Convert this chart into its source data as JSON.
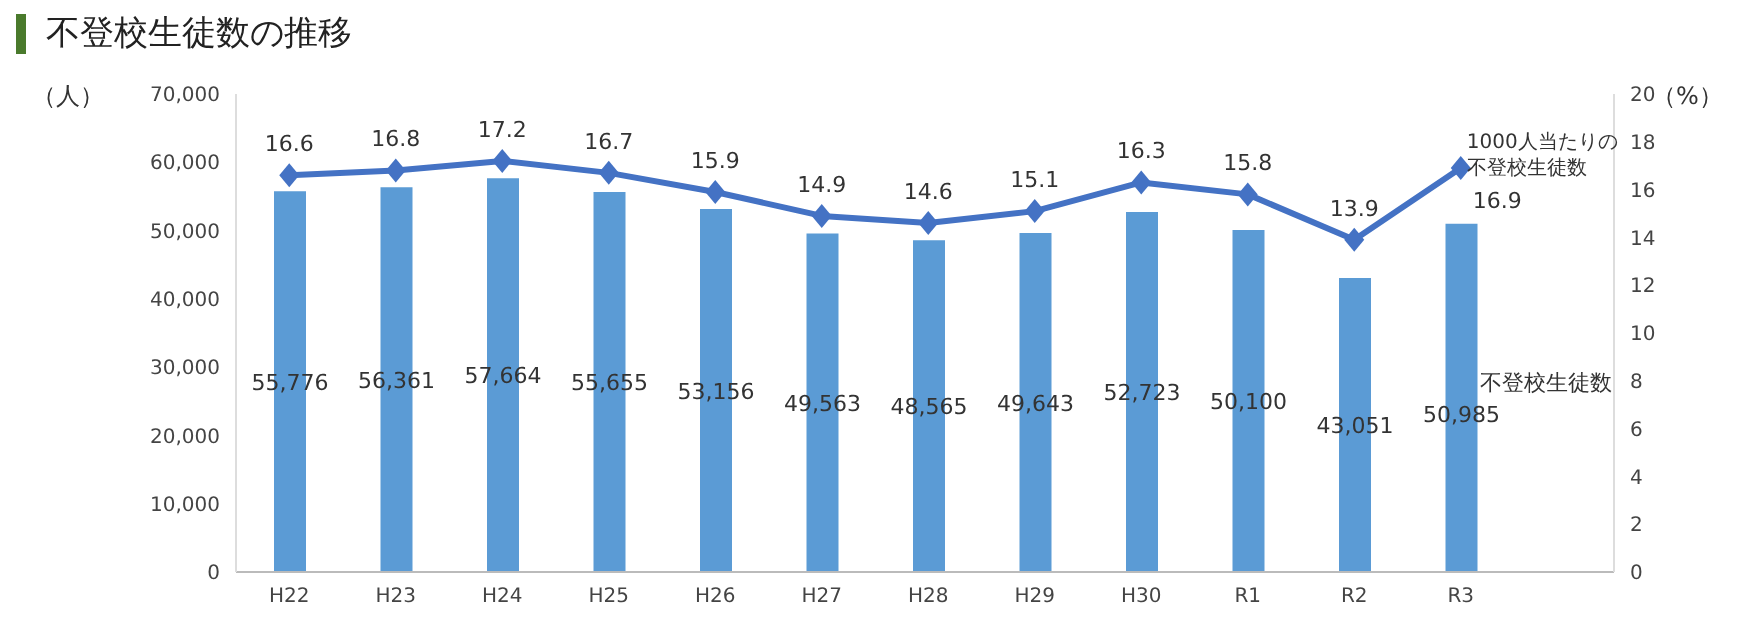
{
  "chart_data": {
    "type": "bar",
    "title": "不登校生徒数の推移",
    "ylabel": "（人）",
    "y2label": "（%）",
    "categories": [
      "H22",
      "H23",
      "H24",
      "H25",
      "H26",
      "H27",
      "H28",
      "H29",
      "H30",
      "R1",
      "R2",
      "R3"
    ],
    "series": [
      {
        "name": "不登校生徒数",
        "color": "#5b9bd5",
        "values": [
          55776,
          56361,
          57664,
          55655,
          53156,
          49563,
          48565,
          49643,
          52723,
          50100,
          43051,
          50985
        ],
        "value_labels": [
          "55,776",
          "56,361",
          "57,664",
          "55,655",
          "53,156",
          "49,563",
          "48,565",
          "49,643",
          "52,723",
          "50,100",
          "43,051",
          "50,985"
        ]
      },
      {
        "name": "1000人当たりの不登校生徒数",
        "type": "line",
        "axis": "y2",
        "color": "#4472c4",
        "values": [
          16.6,
          16.8,
          17.2,
          16.7,
          15.9,
          14.9,
          14.6,
          15.1,
          16.3,
          15.8,
          13.9,
          16.9
        ],
        "value_labels": [
          "16.6",
          "16.8",
          "17.2",
          "16.7",
          "15.9",
          "14.9",
          "14.6",
          "15.1",
          "16.3",
          "15.8",
          "13.9",
          "16.9"
        ]
      }
    ],
    "ylim": [
      0,
      70000
    ],
    "yticks": [
      0,
      {
        "value": 10000,
        "label": "10,000"
      },
      {
        "value": 20000,
        "label": "20,000"
      },
      {
        "value": 30000,
        "label": "30,000"
      },
      {
        "value": 40000,
        "label": "40,000"
      },
      {
        "value": 50000,
        "label": "50,000"
      },
      {
        "value": 60000,
        "label": "60,000"
      },
      {
        "value": 70000,
        "label": "70,000"
      }
    ],
    "y2lim": [
      0,
      20
    ],
    "y2ticks": [
      0,
      2,
      4,
      6,
      8,
      10,
      12,
      14,
      16,
      18,
      20
    ],
    "marker": "diamond"
  }
}
